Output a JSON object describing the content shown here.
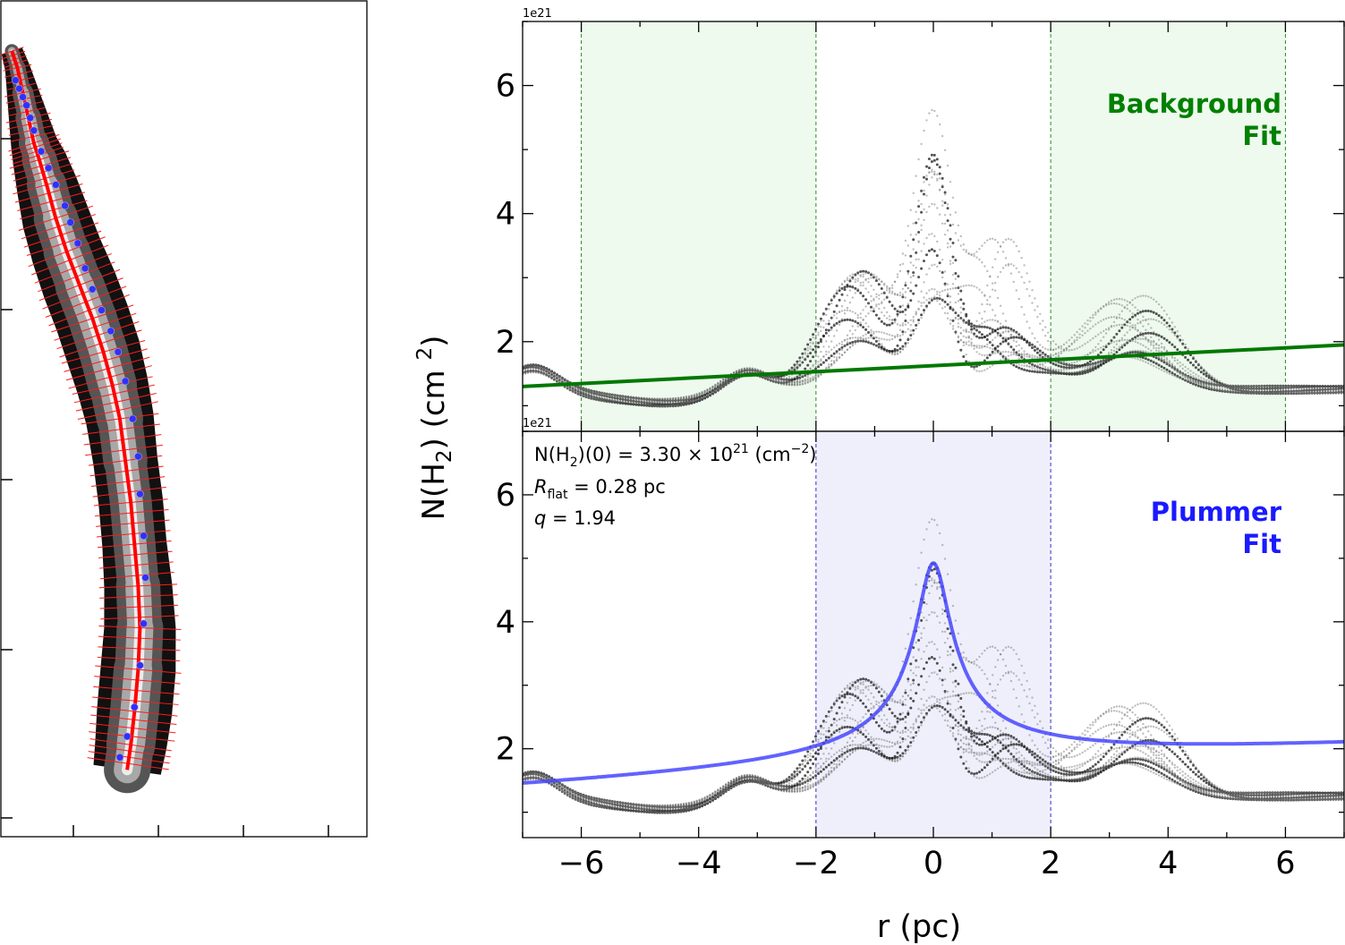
{
  "figure": {
    "ylabel": "N(H₂) (cm  ²)",
    "xlabel": "r (pc)"
  },
  "chart_data": [
    {
      "type": "heatmap",
      "description_panel": "filament map",
      "spine": [
        [
          0.06,
          0.06
        ],
        [
          0.09,
          0.08
        ],
        [
          0.12,
          0.11
        ],
        [
          0.15,
          0.14
        ],
        [
          0.18,
          0.17
        ],
        [
          0.21,
          0.19
        ],
        [
          0.25,
          0.22
        ],
        [
          0.3,
          0.26
        ],
        [
          0.36,
          0.3
        ],
        [
          0.43,
          0.34
        ],
        [
          0.5,
          0.38
        ],
        [
          0.56,
          0.42
        ],
        [
          0.61,
          0.46
        ],
        [
          0.65,
          0.5
        ],
        [
          0.68,
          0.55
        ],
        [
          0.71,
          0.6
        ],
        [
          0.73,
          0.65
        ],
        [
          0.75,
          0.7
        ],
        [
          0.76,
          0.75
        ],
        [
          0.75,
          0.8
        ],
        [
          0.73,
          0.85
        ],
        [
          0.71,
          0.89
        ],
        [
          0.69,
          0.92
        ]
      ],
      "points": [
        [
          0.08,
          0.095
        ],
        [
          0.1,
          0.105
        ],
        [
          0.12,
          0.115
        ],
        [
          0.14,
          0.125
        ],
        [
          0.16,
          0.14
        ],
        [
          0.18,
          0.155
        ],
        [
          0.22,
          0.18
        ],
        [
          0.26,
          0.2
        ],
        [
          0.3,
          0.22
        ],
        [
          0.35,
          0.245
        ],
        [
          0.38,
          0.265
        ],
        [
          0.42,
          0.29
        ],
        [
          0.46,
          0.32
        ],
        [
          0.5,
          0.345
        ],
        [
          0.55,
          0.37
        ],
        [
          0.6,
          0.395
        ],
        [
          0.64,
          0.42
        ],
        [
          0.68,
          0.455
        ],
        [
          0.72,
          0.5
        ],
        [
          0.75,
          0.545
        ],
        [
          0.76,
          0.59
        ],
        [
          0.78,
          0.64
        ],
        [
          0.79,
          0.69
        ],
        [
          0.78,
          0.745
        ],
        [
          0.76,
          0.795
        ],
        [
          0.73,
          0.845
        ],
        [
          0.69,
          0.88
        ],
        [
          0.65,
          0.905
        ]
      ]
    },
    {
      "type": "scatter",
      "panel": "Background Fit",
      "label": "Background\nFit",
      "label_color": "#008000",
      "exponent_label": "1e21",
      "xlim": [
        -7,
        7
      ],
      "ylim": [
        0.6,
        7.0
      ],
      "yticks": [
        2,
        4,
        6
      ],
      "fit_windows": [
        [
          -6,
          -2
        ],
        [
          2,
          6
        ]
      ],
      "fit_line": {
        "x": [
          -7,
          7
        ],
        "y": [
          1.3,
          1.95
        ],
        "color": "#007800"
      }
    },
    {
      "type": "scatter",
      "panel": "Plummer Fit",
      "label": "Plummer\nFit",
      "label_color": "#1a1aff",
      "exponent_label": "1e21",
      "xlim": [
        -7,
        7
      ],
      "ylim": [
        0.6,
        7.0
      ],
      "xticks": [
        -6,
        -4,
        -2,
        0,
        2,
        4,
        6
      ],
      "yticks": [
        2,
        4,
        6
      ],
      "xtick_labels": [
        "−6",
        "−4",
        "−2",
        "0",
        "2",
        "4",
        "6"
      ],
      "fit_window": [
        -2,
        2
      ],
      "annotations": [
        {
          "prefix": "N(H",
          "sub": "2",
          "middle": ")(0) = 3.30 × 10",
          "sup": "21",
          "suffix": " (cm",
          "sup2": "−2",
          "end": ")"
        },
        {
          "prefix": "R",
          "sub": "flat",
          "middle": " = 0.28 pc"
        },
        {
          "prefix": "q",
          "middle": " = 1.94"
        }
      ],
      "plummer": {
        "n0": 3.3,
        "rflat": 0.28,
        "q": 1.94,
        "bg_slope": 0.0465,
        "bg_intercept": 1.625
      }
    }
  ]
}
